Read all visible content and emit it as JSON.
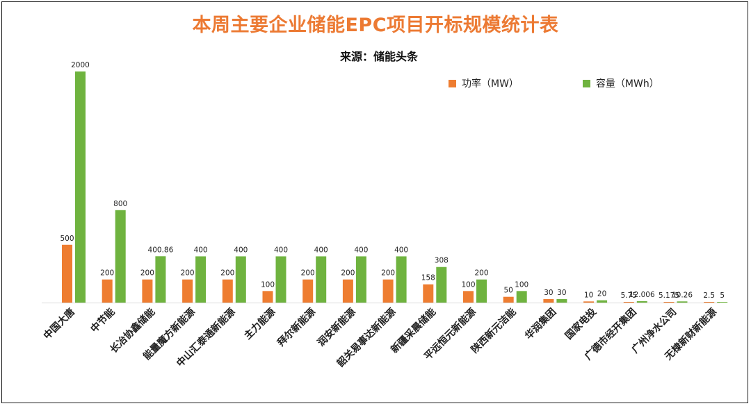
{
  "chart_data": {
    "type": "bar",
    "title": "本周主要企业储能EPC项目开标规模统计表",
    "subtitle": "来源：储能头条",
    "categories": [
      "中国大唐",
      "中节能",
      "长冶协鑫储能",
      "能量魔方新能源",
      "中山汇泰通新能源",
      "主力能源",
      "拜尔新能源",
      "润安新能源",
      "韶关易事达新能源",
      "新疆采晨储能",
      "平远恒元新能源",
      "陕西新元洁能",
      "华润集团",
      "国家电投",
      "广德市经开集团",
      "广州净水公司",
      "无棣新财新能源"
    ],
    "series": [
      {
        "name": "功率（MW）",
        "color": "#ee7d31",
        "values": [
          500,
          200,
          200,
          200,
          200,
          100,
          200,
          200,
          200,
          158,
          100,
          50,
          30,
          10,
          5.75,
          5.175,
          2.5
        ],
        "labels": [
          "500",
          "200",
          "200",
          "200",
          "200",
          "100",
          "200",
          "200",
          "200",
          "158",
          "100",
          "50",
          "30",
          "10",
          "5.75",
          "5.175",
          "2.5"
        ]
      },
      {
        "name": "容量（MWh）",
        "color": "#6fb33f",
        "values": [
          2000,
          800,
          400.86,
          400,
          400,
          400,
          400,
          400,
          400,
          308,
          200,
          100,
          30,
          20,
          12.006,
          10.26,
          5
        ],
        "labels": [
          "2000",
          "800",
          "400.86",
          "400",
          "400",
          "400",
          "400",
          "400",
          "400",
          "308",
          "200",
          "100",
          "30",
          "20",
          "12.006",
          "10.26",
          "5"
        ]
      }
    ],
    "ylim": [
      0,
      2000
    ],
    "grid": false,
    "legend_position": "top-right"
  }
}
